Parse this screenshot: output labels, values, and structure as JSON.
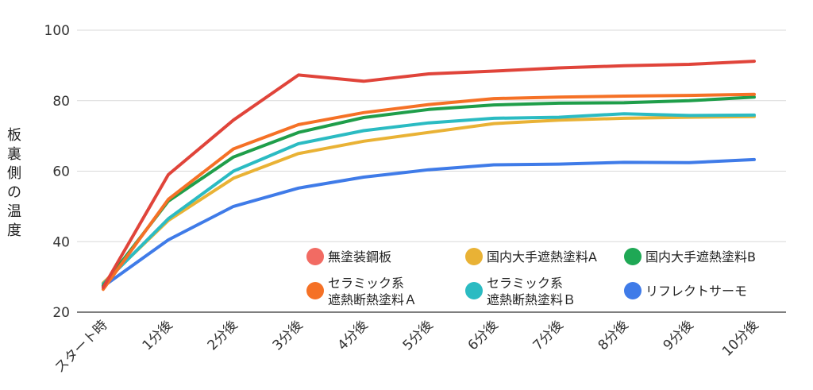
{
  "chart_data": {
    "type": "line",
    "title": "",
    "xlabel": "",
    "ylabel": "板裏側の温度",
    "ylim": [
      20,
      100
    ],
    "yticks": [
      20,
      40,
      60,
      80,
      100
    ],
    "grid": true,
    "legend_position": "bottom-right inside plot",
    "categories": [
      "スタート時",
      "1分後",
      "2分後",
      "3分後",
      "4分後",
      "5分後",
      "6分後",
      "7分後",
      "8分後",
      "9分後",
      "10分後"
    ],
    "series": [
      {
        "name": "無塗装鋼板",
        "color": "#e0443a",
        "values": [
          27.0,
          59.0,
          74.5,
          87.3,
          85.5,
          87.6,
          88.4,
          89.3,
          89.9,
          90.3,
          91.2
        ]
      },
      {
        "name": "セラミック系\n遮熱断熱塗料Ａ",
        "color": "#f57126",
        "values": [
          26.5,
          52.0,
          66.3,
          73.2,
          76.6,
          78.9,
          80.6,
          81.0,
          81.3,
          81.5,
          81.8
        ]
      },
      {
        "name": "国内大手遮熱塗料B",
        "color": "#1f9e4a",
        "values": [
          27.5,
          51.5,
          64.0,
          71.0,
          75.2,
          77.5,
          78.8,
          79.3,
          79.4,
          80.0,
          81.0
        ]
      },
      {
        "name": "セラミック系\n遮熱断熱塗料Ｂ",
        "color": "#2bbbc2",
        "values": [
          28.0,
          46.5,
          60.0,
          67.8,
          71.5,
          73.7,
          75.0,
          75.3,
          76.3,
          75.8,
          75.9
        ]
      },
      {
        "name": "国内大手遮熱塗料A",
        "color": "#e9b235",
        "values": [
          28.3,
          46.0,
          58.0,
          65.0,
          68.5,
          71.0,
          73.5,
          74.5,
          75.0,
          75.3,
          75.5
        ]
      },
      {
        "name": "リフレクトサーモ",
        "color": "#3f7be8",
        "values": [
          27.3,
          40.5,
          50.0,
          55.2,
          58.3,
          60.4,
          61.8,
          62.0,
          62.5,
          62.4,
          63.3
        ]
      }
    ],
    "legend": [
      {
        "label": "無塗装鋼板",
        "color": "#f26b63"
      },
      {
        "label": "国内大手遮熱塗料A",
        "color": "#e9b235"
      },
      {
        "label": "国内大手遮熱塗料B",
        "color": "#1fa855"
      },
      {
        "label": "セラミック系\n遮熱断熱塗料Ａ",
        "color": "#f57126"
      },
      {
        "label": "セラミック系\n遮熱断熱塗料Ｂ",
        "color": "#2bbbc2"
      },
      {
        "label": "リフレクトサーモ",
        "color": "#3f7be8"
      }
    ]
  }
}
